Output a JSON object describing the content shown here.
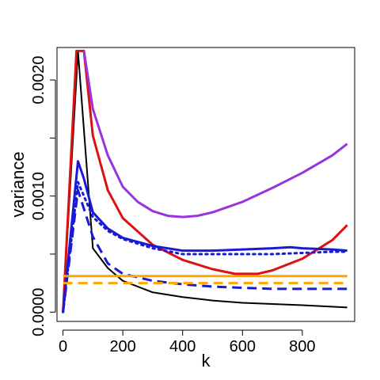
{
  "chart_data": {
    "type": "line",
    "title": "",
    "xlabel": "k",
    "ylabel": "variance",
    "xlim": [
      -20,
      975
    ],
    "ylim": [
      -8e-05,
      0.00228
    ],
    "x_ticks": [
      0,
      200,
      400,
      600,
      800
    ],
    "x_tick_labels": [
      "0",
      "200",
      "400",
      "600",
      "800"
    ],
    "y_ticks": [
      0,
      0.0005,
      0.001,
      0.0015,
      0.002
    ],
    "y_tick_labels": [
      "0.0000",
      "",
      "0.0010",
      "",
      "0.0020"
    ],
    "grid": false,
    "legend": "none",
    "series": [
      {
        "color": "#000000",
        "dash": "solid",
        "width": 2,
        "points": [
          [
            0,
            0
          ],
          [
            50,
            0.00225
          ],
          [
            100,
            0.00055
          ],
          [
            150,
            0.00038
          ],
          [
            200,
            0.00027
          ],
          [
            300,
            0.00017
          ],
          [
            400,
            0.00013
          ],
          [
            500,
            0.0001
          ],
          [
            600,
            8e-05
          ],
          [
            700,
            7e-05
          ],
          [
            800,
            6e-05
          ],
          [
            950,
            4e-05
          ]
        ]
      },
      {
        "color": "#dd1111",
        "dash": "solid",
        "width": 3,
        "points": [
          [
            0,
            0
          ],
          [
            45,
            0.00225
          ],
          [
            70,
            0.00225
          ],
          [
            100,
            0.00152
          ],
          [
            150,
            0.00105
          ],
          [
            200,
            0.00081
          ],
          [
            300,
            0.00058
          ],
          [
            400,
            0.00045
          ],
          [
            500,
            0.00037
          ],
          [
            575,
            0.00033
          ],
          [
            650,
            0.00033
          ],
          [
            700,
            0.00036
          ],
          [
            800,
            0.00046
          ],
          [
            900,
            0.00062
          ],
          [
            950,
            0.00075
          ]
        ]
      },
      {
        "color": "#9933dd",
        "dash": "solid",
        "width": 3,
        "points": [
          [
            70,
            0.00225
          ],
          [
            100,
            0.00175
          ],
          [
            150,
            0.00135
          ],
          [
            200,
            0.00108
          ],
          [
            250,
            0.00095
          ],
          [
            300,
            0.00087
          ],
          [
            350,
            0.00083
          ],
          [
            400,
            0.00082
          ],
          [
            450,
            0.00083
          ],
          [
            500,
            0.00086
          ],
          [
            600,
            0.00095
          ],
          [
            700,
            0.00107
          ],
          [
            800,
            0.0012
          ],
          [
            900,
            0.00135
          ],
          [
            950,
            0.00145
          ]
        ]
      },
      {
        "color": "#1a1ad6",
        "dash": "solid",
        "width": 3,
        "points": [
          [
            0,
            0
          ],
          [
            50,
            0.0013
          ],
          [
            70,
            0.00115
          ],
          [
            100,
            0.00086
          ],
          [
            150,
            0.00072
          ],
          [
            200,
            0.00064
          ],
          [
            300,
            0.00057
          ],
          [
            400,
            0.00053
          ],
          [
            500,
            0.00053
          ],
          [
            600,
            0.00054
          ],
          [
            700,
            0.00055
          ],
          [
            760,
            0.00056
          ],
          [
            800,
            0.00055
          ],
          [
            900,
            0.00054
          ],
          [
            950,
            0.00053
          ]
        ]
      },
      {
        "color": "#1a1ad6",
        "dash": "dotted",
        "width": 3,
        "points": [
          [
            0,
            0
          ],
          [
            50,
            0.00112
          ],
          [
            100,
            0.00082
          ],
          [
            150,
            0.0007
          ],
          [
            200,
            0.00063
          ],
          [
            300,
            0.00055
          ],
          [
            400,
            0.0005
          ],
          [
            500,
            0.0005
          ],
          [
            600,
            0.0005
          ],
          [
            700,
            0.0005
          ],
          [
            800,
            0.00051
          ],
          [
            900,
            0.00052
          ],
          [
            950,
            0.00052
          ]
        ]
      },
      {
        "color": "#1a1ad6",
        "dash": "dashed",
        "width": 3,
        "points": [
          [
            0,
            0
          ],
          [
            50,
            0.00105
          ],
          [
            100,
            0.00065
          ],
          [
            150,
            0.00042
          ],
          [
            200,
            0.00033
          ],
          [
            300,
            0.00027
          ],
          [
            400,
            0.00024
          ],
          [
            500,
            0.00022
          ],
          [
            600,
            0.00021
          ],
          [
            700,
            0.0002
          ],
          [
            800,
            0.0002
          ],
          [
            950,
            0.0002
          ]
        ]
      },
      {
        "color": "#ffa500",
        "dash": "solid",
        "width": 3,
        "points": [
          [
            0,
            0.00031
          ],
          [
            950,
            0.00031
          ]
        ]
      },
      {
        "color": "#ffa500",
        "dash": "dashed",
        "width": 3,
        "points": [
          [
            0,
            0.00025
          ],
          [
            950,
            0.00025
          ]
        ]
      }
    ]
  }
}
